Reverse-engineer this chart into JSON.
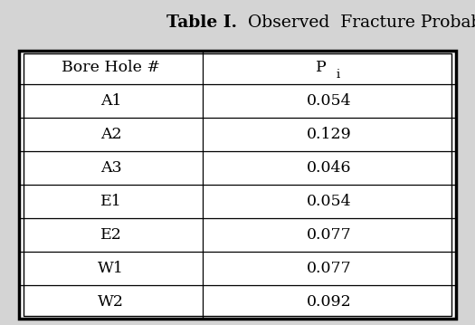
{
  "title_bold": "Table I.",
  "title_normal": "  Observed  Fracture Probabilities",
  "col1_header": "Bore Hole #",
  "col2_header": "P",
  "col2_header_sub": "i",
  "rows": [
    [
      "A1",
      "0.054"
    ],
    [
      "A2",
      "0.129"
    ],
    [
      "A3",
      "0.046"
    ],
    [
      "E1",
      "0.054"
    ],
    [
      "E2",
      "0.077"
    ],
    [
      "W1",
      "0.077"
    ],
    [
      "W2",
      "0.092"
    ]
  ],
  "bg_color": "#d4d4d4",
  "cell_bg": "#ffffff",
  "font_family": "serif",
  "title_fontsize": 13.5,
  "header_fontsize": 12.5,
  "cell_fontsize": 12.5,
  "fig_width": 5.25,
  "fig_height": 3.59
}
